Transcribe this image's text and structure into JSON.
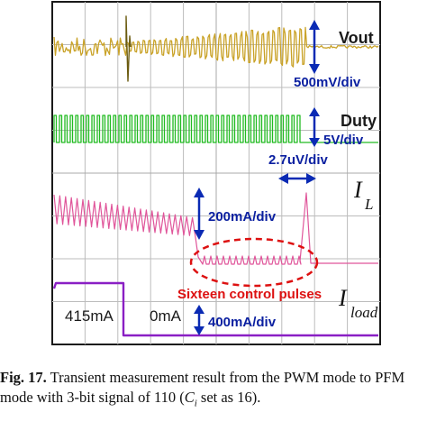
{
  "chart_data": {
    "type": "line",
    "title": "",
    "xlabel": "",
    "ylabel": "",
    "grid": true,
    "series": [
      {
        "name": "Vout",
        "color": "#c9a227",
        "scale": "500mV/div",
        "behavior": "ripple grows during PWM-to-PFM transition, then settles flat"
      },
      {
        "name": "Duty",
        "color": "#22bb22",
        "scale": "5V/div",
        "behavior": "switching pulse train, ends flat"
      },
      {
        "name": "I",
        "subscript": "L",
        "color": "#e0559a",
        "scale": "200mA/div",
        "behavior": "triangular inductor current, amplitude shrinks, then small pulses and one spike"
      },
      {
        "name": "I",
        "subscript": "load",
        "color": "#8a1fc4",
        "scale": "400mA/div",
        "behavior": "load step from high to low level"
      }
    ],
    "load_step": {
      "high_label": "415mA",
      "low_label": "0mA"
    },
    "time_marker": "2.7uV/div",
    "highlight": {
      "text": "Sixteen control pulses",
      "pulse_count": 16
    }
  },
  "caption": {
    "label": "Fig. 17.",
    "text_before": " Transient measurement result from the PWM mode to PFM mode with 3-bit signal of 110 (",
    "symbol": "C",
    "symbol_subscript": "i",
    "text_after": "   set as 16)."
  }
}
